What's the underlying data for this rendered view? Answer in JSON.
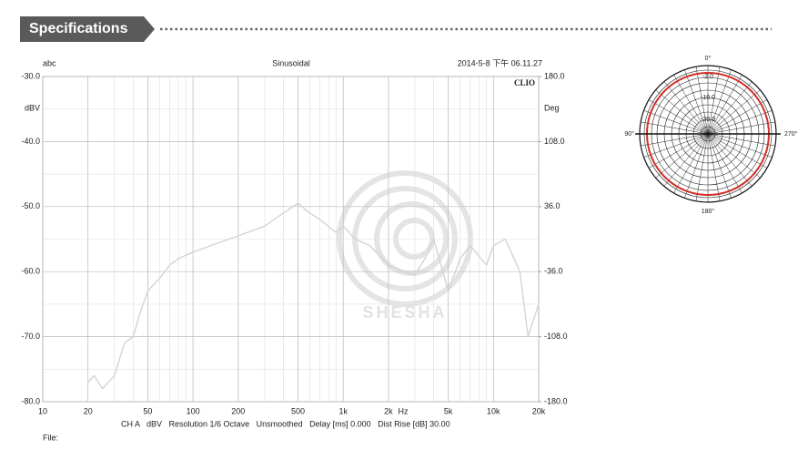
{
  "header": {
    "title": "Specifications"
  },
  "chart_data": {
    "type": "line",
    "title": "Sinusoidal",
    "left_note": "abc",
    "timestamp": "2014-5-8 下午 06.11.27",
    "brand": "CLIO",
    "y_label": "dBV",
    "y2_label": "Deg",
    "x_unit": "Hz",
    "footer": "CH A   dBV   Resolution 1/6 Octave   Unsmoothed   Delay [ms] 0.000   Dist Rise [dB] 30.00",
    "file_label": "File:",
    "watermark": "SHESHA",
    "log_x": true,
    "grid": true,
    "color": "#d4d4d4",
    "x": [
      20,
      22,
      25,
      30,
      35,
      40,
      45,
      50,
      60,
      70,
      80,
      100,
      150,
      200,
      300,
      400,
      500,
      600,
      700,
      900,
      1000,
      1200,
      1500,
      2000,
      2500,
      3000,
      3500,
      4000,
      5000,
      6000,
      7000,
      9000,
      10000,
      12000,
      15000,
      17000,
      20000
    ],
    "values": [
      -77,
      -76,
      -78,
      -76,
      -71,
      -70,
      -66,
      -63,
      -61,
      -59,
      -58,
      -57,
      -55.5,
      -54.5,
      -53,
      -51,
      -49.5,
      -51,
      -52,
      -54,
      -53,
      -55,
      -56,
      -59,
      -60,
      -60.5,
      -58,
      -55,
      -63,
      -58,
      -56,
      -59,
      -56,
      -55,
      -60,
      -70,
      -65
    ],
    "xlim": [
      10,
      20000
    ],
    "xticks": [
      10,
      20,
      50,
      100,
      200,
      500,
      {
        "value": 1000,
        "label": "1k"
      },
      {
        "value": 2000,
        "label": "2k"
      },
      {
        "value": 5000,
        "label": "5k"
      },
      {
        "value": 10000,
        "label": "10k"
      },
      {
        "value": 20000,
        "label": "20k"
      }
    ],
    "ylim": [
      -80,
      -30
    ],
    "yticks": [
      {
        "value": -80,
        "label": "-80.0"
      },
      {
        "value": -70,
        "label": "-70.0"
      },
      {
        "value": -60,
        "label": "-60.0"
      },
      {
        "value": -50,
        "label": "-50.0"
      },
      {
        "value": -40,
        "label": "-40.0"
      },
      {
        "value": -30,
        "label": "-30.0"
      }
    ],
    "y2lim": [
      -180,
      180
    ],
    "y2ticks": [
      {
        "value": -180,
        "label": "-180.0"
      },
      {
        "value": -108,
        "label": "-108.0"
      },
      {
        "value": -36,
        "label": "-36.0"
      },
      {
        "value": 36,
        "label": "36.0"
      },
      {
        "value": 108,
        "label": "108.0"
      },
      {
        "value": 180,
        "label": "180.0"
      }
    ]
  },
  "polar": {
    "angle_labels": [
      "0°",
      "90°",
      "180°",
      "270°"
    ],
    "ring_labels": [
      "-2.0",
      "-10.0",
      "-20.0"
    ]
  }
}
